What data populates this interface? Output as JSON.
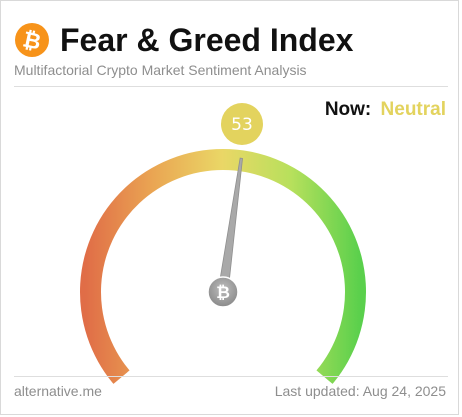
{
  "header": {
    "title": "Fear & Greed Index",
    "subtitle": "Multifactorial Crypto Market Sentiment Analysis",
    "logo_icon": "bitcoin-logo-icon"
  },
  "now": {
    "label": "Now:",
    "value": "Neutral",
    "value_color": "#e3d35e"
  },
  "gauge": {
    "value": 53,
    "min": 0,
    "max": 100,
    "badge_color": "#e3d35e",
    "colors": {
      "extreme_fear": "#e06d47",
      "fear": "#eaa653",
      "neutral": "#ead766",
      "greed": "#b7e05c",
      "extreme_greed": "#5ad04c"
    },
    "pivot_icon": "bitcoin-pivot-icon"
  },
  "footer": {
    "source": "alternative.me",
    "updated": "Last updated: Aug 24, 2025"
  }
}
